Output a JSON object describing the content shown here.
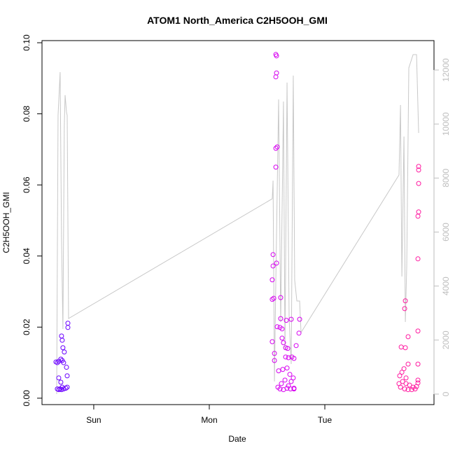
{
  "chart_data": {
    "type": "scatter",
    "title": "ATOM1 North_America C2H5OOH_GMI",
    "x_label": "Date",
    "y_label": "C2H5OOH_GMI",
    "xlim": [
      -0.448,
      2.945
    ],
    "xticks": [
      {
        "value": 0,
        "label": "Sun"
      },
      {
        "value": 1,
        "label": "Mon"
      },
      {
        "value": 2,
        "label": "Tue"
      }
    ],
    "ylim": [
      -0.0018,
      0.1006
    ],
    "yticks": [
      {
        "value": 0,
        "label": "0.00"
      },
      0.02,
      0.04,
      0.06,
      0.08,
      {
        "value": 0.1,
        "label": "0.10"
      }
    ],
    "y2lim": [
      -389,
      13089
    ],
    "y2ticks": [
      0,
      2000,
      4000,
      6000,
      8000,
      10000,
      12000
    ],
    "y2_color": "#bebebe",
    "series": [
      {
        "type": "line",
        "axis": "y2",
        "color": "#c8c8c8",
        "x": [
          -0.321,
          -0.309,
          -0.291,
          -0.279,
          -0.267,
          -0.255,
          -0.248,
          -0.236,
          -0.23,
          -0.218,
          1.545,
          1.552,
          1.564,
          1.576,
          1.6,
          1.618,
          1.642,
          1.655,
          1.673,
          1.691,
          1.709,
          1.727,
          1.739,
          1.758,
          1.782,
          1.794,
          2.642,
          2.655,
          2.667,
          2.685,
          2.697,
          2.709,
          2.727,
          2.764,
          2.794,
          2.812
        ],
        "values": [
          0,
          10316,
          11923,
          5780,
          2410,
          9927,
          11068,
          10446,
          10316,
          2799,
          7232,
          7906,
          467,
          4225,
          10912,
          2670,
          10835,
          1633,
          11534,
          2799,
          1114,
          11794,
          4225,
          3447,
          3447,
          2281,
          8113,
          10705,
          4355,
          9539,
          2670,
          4743,
          12079,
          12571,
          12571,
          9669
        ]
      },
      {
        "color": "#6a00ff",
        "x": [
          -0.327,
          -0.315,
          -0.303,
          -0.285,
          -0.273,
          -0.261,
          -0.279,
          -0.273,
          -0.267,
          -0.255,
          -0.224,
          -0.224,
          -0.303,
          -0.285,
          -0.273,
          -0.236,
          -0.23,
          -0.315,
          -0.303,
          -0.291,
          -0.279,
          -0.261,
          -0.242,
          -0.23
        ],
        "values": [
          0.0102,
          0.01,
          0.0104,
          0.011,
          0.0106,
          0.01,
          0.0175,
          0.0163,
          0.0142,
          0.013,
          0.0211,
          0.0199,
          0.0057,
          0.0045,
          0.0031,
          0.0087,
          0.0063,
          0.0026,
          0.0024,
          0.0026,
          0.0024,
          0.0026,
          0.0028,
          0.0031
        ]
      },
      {
        "color": "#d600f0",
        "x": [
          1.576,
          1.582,
          1.582,
          1.576,
          1.576,
          1.588,
          1.576,
          1.552,
          1.552,
          1.582,
          1.545,
          1.545,
          1.558,
          1.618,
          1.618,
          1.667,
          1.709,
          1.782,
          1.545,
          1.564,
          1.564,
          1.588,
          1.612,
          1.63,
          1.63,
          1.642,
          1.661,
          1.679,
          1.752,
          1.776,
          1.661,
          1.685,
          1.715,
          1.733,
          1.6,
          1.636,
          1.673,
          1.697,
          1.727,
          1.594,
          1.624,
          1.655,
          1.685,
          1.709,
          1.733,
          1.612,
          1.642,
          1.673,
          1.703,
          1.733
        ],
        "values": [
          0.0967,
          0.0963,
          0.0915,
          0.0904,
          0.0703,
          0.0707,
          0.065,
          0.0404,
          0.0372,
          0.038,
          0.0333,
          0.0278,
          0.0281,
          0.0283,
          0.0224,
          0.0219,
          0.0222,
          0.0222,
          0.0159,
          0.0126,
          0.0106,
          0.0201,
          0.0199,
          0.0195,
          0.0169,
          0.0156,
          0.0142,
          0.014,
          0.0148,
          0.0183,
          0.0116,
          0.0114,
          0.0116,
          0.0112,
          0.0077,
          0.0081,
          0.0085,
          0.0067,
          0.0057,
          0.0031,
          0.0041,
          0.0051,
          0.0035,
          0.0047,
          0.0026,
          0.0026,
          0.0024,
          0.0028,
          0.0026,
          0.0028
        ]
      },
      {
        "color": "#ff1aa0",
        "x": [
          2.812,
          2.812,
          2.812,
          2.812,
          2.806,
          2.806,
          2.806,
          2.697,
          2.691,
          2.721,
          2.661,
          2.697,
          2.721,
          2.806,
          2.685,
          2.667,
          2.648,
          2.703,
          2.642,
          2.673,
          2.703,
          2.733,
          2.764,
          2.794,
          2.806,
          2.655,
          2.691,
          2.721,
          2.752,
          2.782,
          2.806
        ],
        "values": [
          0.0652,
          0.0642,
          0.0604,
          0.0524,
          0.0512,
          0.0392,
          0.0189,
          0.0274,
          0.0252,
          0.0173,
          0.0144,
          0.0142,
          0.0096,
          0.0096,
          0.0083,
          0.0073,
          0.0063,
          0.0057,
          0.0041,
          0.0047,
          0.0041,
          0.0037,
          0.0031,
          0.0033,
          0.0051,
          0.0031,
          0.0026,
          0.0024,
          0.0024,
          0.0026,
          0.0043
        ]
      }
    ]
  }
}
